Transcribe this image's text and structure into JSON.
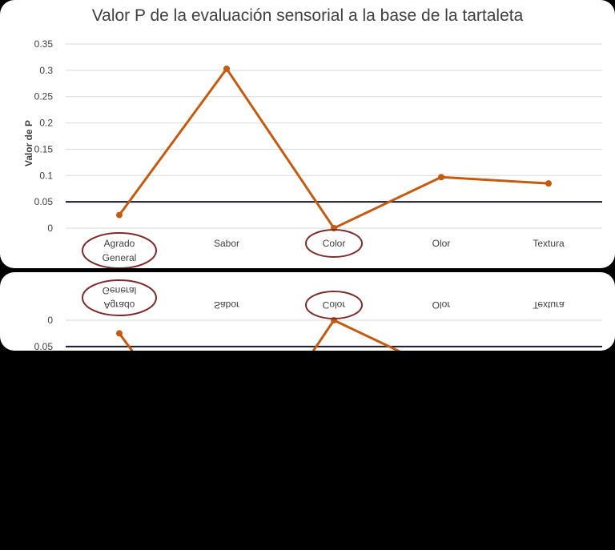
{
  "chart_data": {
    "type": "line",
    "title": "Valor P de la evaluación sensorial a la base de la tartaleta",
    "ylabel": "Valor de P",
    "xlabel": "",
    "categories": [
      "Agrado General",
      "Sabor",
      "Color",
      "Olor",
      "Textura"
    ],
    "category_lines": [
      [
        "Agrado",
        "General"
      ],
      [
        "Sabor"
      ],
      [
        "Color"
      ],
      [
        "Olor"
      ],
      [
        "Textura"
      ]
    ],
    "series": [
      {
        "values": [
          0.025,
          0.303,
          0.0,
          0.097,
          0.085
        ]
      }
    ],
    "ylim": [
      0,
      0.35
    ],
    "yticks": [
      "0",
      "0.05",
      "0.1",
      "0.15",
      "0.2",
      "0.25",
      "0.3",
      "0.35"
    ],
    "threshold": 0.05,
    "circled_categories": [
      "Agrado General",
      "Color"
    ],
    "grid": true,
    "colors": {
      "series": "#c55a11",
      "threshold": "#1a1a2e",
      "grid": "#d9d9d9",
      "circle": "#7b2c2c"
    }
  }
}
